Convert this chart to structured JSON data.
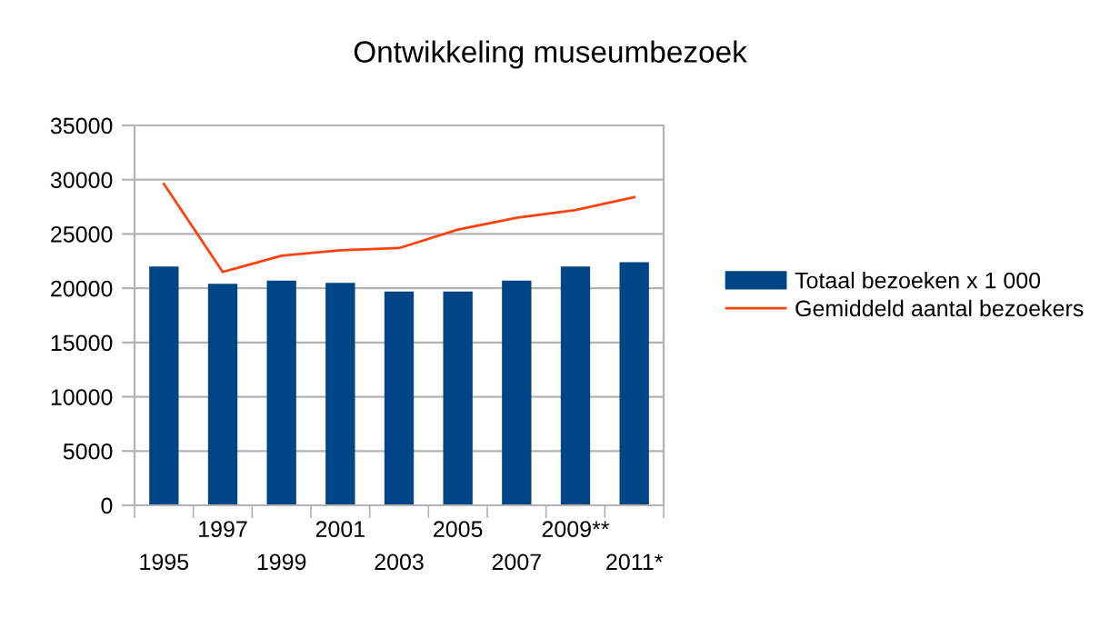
{
  "chart_data": {
    "type": "bar",
    "title": "Ontwikkeling museumbezoek",
    "categories": [
      "1995",
      "1997",
      "1999",
      "2001",
      "2003",
      "2005",
      "2007",
      "2009**",
      "2011*"
    ],
    "series": [
      {
        "name": "Totaal bezoeken x 1 000",
        "color": "#004586",
        "values": [
          22000,
          20400,
          20700,
          20500,
          19700,
          19700,
          20700,
          22000,
          22400
        ]
      },
      {
        "name": "Gemiddeld aantal bezoekers",
        "type": "line",
        "color": "#ff420e",
        "values": [
          29600,
          21500,
          23000,
          23500,
          23700,
          25400,
          26500,
          27200,
          28400
        ]
      }
    ],
    "ylim": [
      0,
      35000
    ],
    "yticks": [
      0,
      5000,
      10000,
      15000,
      20000,
      25000,
      30000,
      35000
    ],
    "grid": "y",
    "legend": "right",
    "marker": "none",
    "line_style": "solid"
  }
}
